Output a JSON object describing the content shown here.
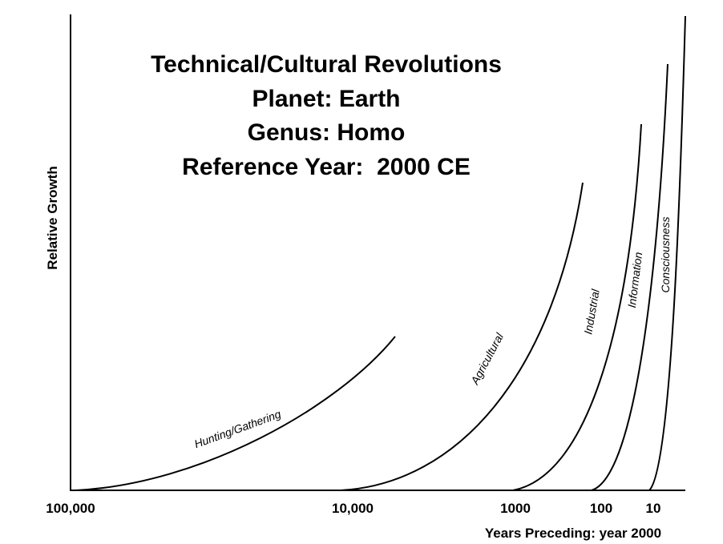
{
  "title": {
    "lines": [
      "Technical/Cultural Revolutions",
      "Planet: Earth",
      "Genus: Homo",
      "Reference Year:  2000 CE"
    ]
  },
  "y_axis": {
    "label": "Relative Growth"
  },
  "x_axis": {
    "label": "Years Preceding: year 2000",
    "ticks": [
      "100,000",
      "10,000",
      "1000",
      "100",
      "10"
    ]
  },
  "curves": [
    {
      "label": "Hunting/Gathering"
    },
    {
      "label": "Agricultural"
    },
    {
      "label": "Industrial"
    },
    {
      "label": "Information"
    },
    {
      "label": "Consciousness"
    }
  ]
}
